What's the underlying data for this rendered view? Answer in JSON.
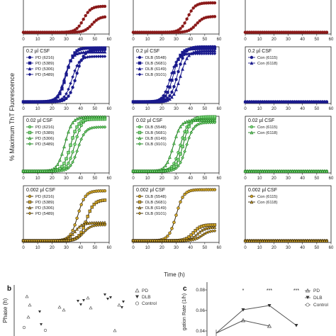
{
  "figure": {
    "ylabel": "% Maximum ThT Fluorescence",
    "xlabel": "Time (h)"
  },
  "panel_b": {
    "letter": "b",
    "ylabel": "Phase (h)",
    "legend": [
      "PD",
      "DLB",
      "Control"
    ]
  },
  "panel_c": {
    "letter": "c",
    "ylabel": "gation Rate (1/h)",
    "yticks": [
      "0.08",
      "0.06",
      "0.04"
    ],
    "stars": [
      "*",
      "***",
      "***"
    ],
    "legend": [
      "PD",
      "DLB",
      "Control"
    ]
  },
  "chart_data": {
    "type": "line",
    "xlim": [
      0,
      60
    ],
    "ylim": [
      0,
      100
    ],
    "xticks": [
      0,
      10,
      20,
      30,
      40,
      50,
      60
    ],
    "rows": [
      {
        "row": 0,
        "color": "#8b1a1a",
        "label": "",
        "panels": [
          {
            "series": [
              {
                "t50": 42,
                "max": 46,
                "shape": "circle"
              },
              {
                "t50": 48,
                "max": 28,
                "shape": "circle"
              }
            ]
          },
          {
            "series": [
              {
                "t50": 38,
                "max": 52,
                "shape": "circle"
              },
              {
                "t50": 44,
                "max": 28,
                "shape": "circle"
              }
            ]
          },
          {
            "series": [
              {
                "t50": 999,
                "max": 0,
                "shape": "circle"
              },
              {
                "t50": 999,
                "max": 0,
                "shape": "circle"
              }
            ]
          }
        ]
      },
      {
        "row": 1,
        "color": "#1a1a8c",
        "label": "0.2 µl CSF",
        "panels": [
          {
            "series": [
              {
                "name": "PD (6216)",
                "t50": 37,
                "max": 92,
                "shape": "circle"
              },
              {
                "name": "PD (5389)",
                "t50": 30,
                "max": 95,
                "shape": "square"
              },
              {
                "name": "PD (5306)",
                "t50": 29,
                "max": 88,
                "shape": "triangle"
              },
              {
                "name": "PD (5489)",
                "t50": 34,
                "max": 80,
                "shape": "diamond"
              }
            ]
          },
          {
            "series": [
              {
                "name": "DLB (5548)",
                "t50": 31,
                "max": 97,
                "shape": "circle"
              },
              {
                "name": "DLB (5681)",
                "t50": 28,
                "max": 94,
                "shape": "square"
              },
              {
                "name": "DLB (6149)",
                "t50": 33,
                "max": 90,
                "shape": "triangle"
              },
              {
                "name": "DLB (9101)",
                "t50": 26,
                "max": 85,
                "shape": "diamond"
              }
            ]
          },
          {
            "series": [
              {
                "name": "Con (6115)",
                "t50": 999,
                "max": 0,
                "shape": "circle"
              },
              {
                "name": "Con (6118)",
                "t50": 999,
                "max": 0,
                "shape": "triangle"
              }
            ]
          }
        ]
      },
      {
        "row": 2,
        "color": "#1a7a1a",
        "fill": "#7ed87e",
        "label": "0.02 µl CSF",
        "panels": [
          {
            "series": [
              {
                "name": "PD (6216)",
                "t50": 36,
                "max": 95,
                "shape": "circle"
              },
              {
                "name": "PD (5389)",
                "t50": 33,
                "max": 92,
                "shape": "square"
              },
              {
                "name": "PD (5306)",
                "t50": 29,
                "max": 96,
                "shape": "triangle"
              },
              {
                "name": "PD (5489)",
                "t50": 38,
                "max": 78,
                "shape": "diamond"
              }
            ]
          },
          {
            "series": [
              {
                "name": "DLB (5548)",
                "t50": 33,
                "max": 92,
                "shape": "circle"
              },
              {
                "name": "DLB (5681)",
                "t50": 35,
                "max": 96,
                "shape": "square"
              },
              {
                "name": "DLB (6149)",
                "t50": 28,
                "max": 90,
                "shape": "triangle"
              },
              {
                "name": "DLB (9101)",
                "t50": 37,
                "max": 86,
                "shape": "diamond"
              }
            ]
          },
          {
            "series": [
              {
                "name": "Con (6115)",
                "t50": 999,
                "max": 0,
                "shape": "circle"
              },
              {
                "name": "Con (6118)",
                "t50": 999,
                "max": 0,
                "shape": "triangle"
              }
            ]
          }
        ]
      },
      {
        "row": 3,
        "color": "#3a2a0a",
        "fill": "#d4a92a",
        "label": "0.002 µl CSF",
        "panels": [
          {
            "series": [
              {
                "name": "PD (6216)",
                "t50": 38,
                "max": 88,
                "shape": "circle"
              },
              {
                "name": "PD (5389)",
                "t50": 44,
                "max": 72,
                "shape": "square"
              },
              {
                "name": "PD (5306)",
                "t50": 36,
                "max": 32,
                "shape": "triangle"
              },
              {
                "name": "PD (5489)",
                "t50": 42,
                "max": 28,
                "shape": "diamond"
              }
            ]
          },
          {
            "series": [
              {
                "name": "DLB (5548)",
                "t50": 30,
                "max": 90,
                "shape": "circle"
              },
              {
                "name": "DLB (5681)",
                "t50": 42,
                "max": 28,
                "shape": "square"
              },
              {
                "name": "DLB (6149)",
                "t50": 45,
                "max": 24,
                "shape": "triangle"
              },
              {
                "name": "DLB (9101)",
                "t50": 48,
                "max": 18,
                "shape": "diamond"
              }
            ]
          },
          {
            "series": [
              {
                "name": "Con (6115)",
                "t50": 999,
                "max": 0,
                "shape": "circle"
              },
              {
                "name": "Con (6118)",
                "t50": 999,
                "max": 0,
                "shape": "triangle"
              }
            ]
          }
        ]
      }
    ]
  }
}
